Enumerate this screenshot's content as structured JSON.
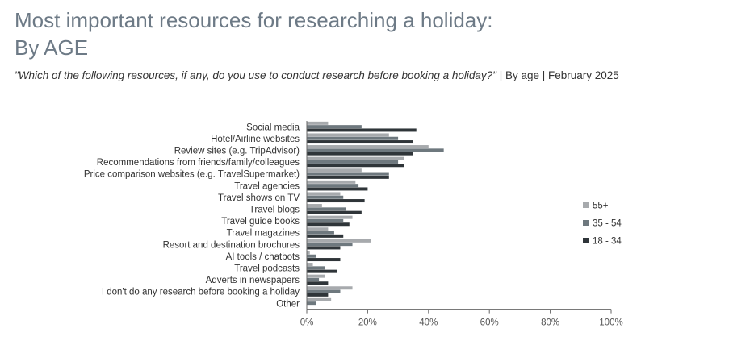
{
  "header": {
    "title_line1": "Most important resources for researching a holiday:",
    "title_line2": "By AGE",
    "question": "\"Which of the following resources, if any, do you use to conduct research before booking a holiday?\"",
    "meta": " | By age | February 2025"
  },
  "chart_data": {
    "type": "bar",
    "orientation": "horizontal",
    "categories": [
      "Social media",
      "Hotel/Airline websites",
      "Review sites (e.g. TripAdvisor)",
      "Recommendations from friends/family/colleagues",
      "Price comparison websites (e.g. TravelSupermarket)",
      "Travel agencies",
      "Travel shows on TV",
      "Travel blogs",
      "Travel guide books",
      "Travel magazines",
      "Resort and destination brochures",
      "AI tools / chatbots",
      "Travel podcasts",
      "Adverts in newspapers",
      "I don't do any research before booking a holiday",
      "Other"
    ],
    "series": [
      {
        "name": "55+",
        "color": "#a7aaad",
        "values": [
          7,
          27,
          40,
          32,
          18,
          16,
          11,
          5,
          15,
          7,
          21,
          1,
          2,
          6,
          15,
          8
        ]
      },
      {
        "name": "35 - 54",
        "color": "#6e787e",
        "values": [
          18,
          30,
          45,
          30,
          27,
          17,
          12,
          13,
          12,
          9,
          15,
          3,
          6,
          4,
          11,
          3
        ]
      },
      {
        "name": "18 - 34",
        "color": "#2f3539",
        "values": [
          36,
          35,
          35,
          32,
          27,
          20,
          19,
          18,
          14,
          12,
          11,
          11,
          10,
          7,
          7,
          0
        ]
      }
    ],
    "xlim": [
      0,
      100
    ],
    "xticks": [
      "0%",
      "20%",
      "40%",
      "60%",
      "80%",
      "100%"
    ],
    "legend_position": "right",
    "grid": false
  }
}
